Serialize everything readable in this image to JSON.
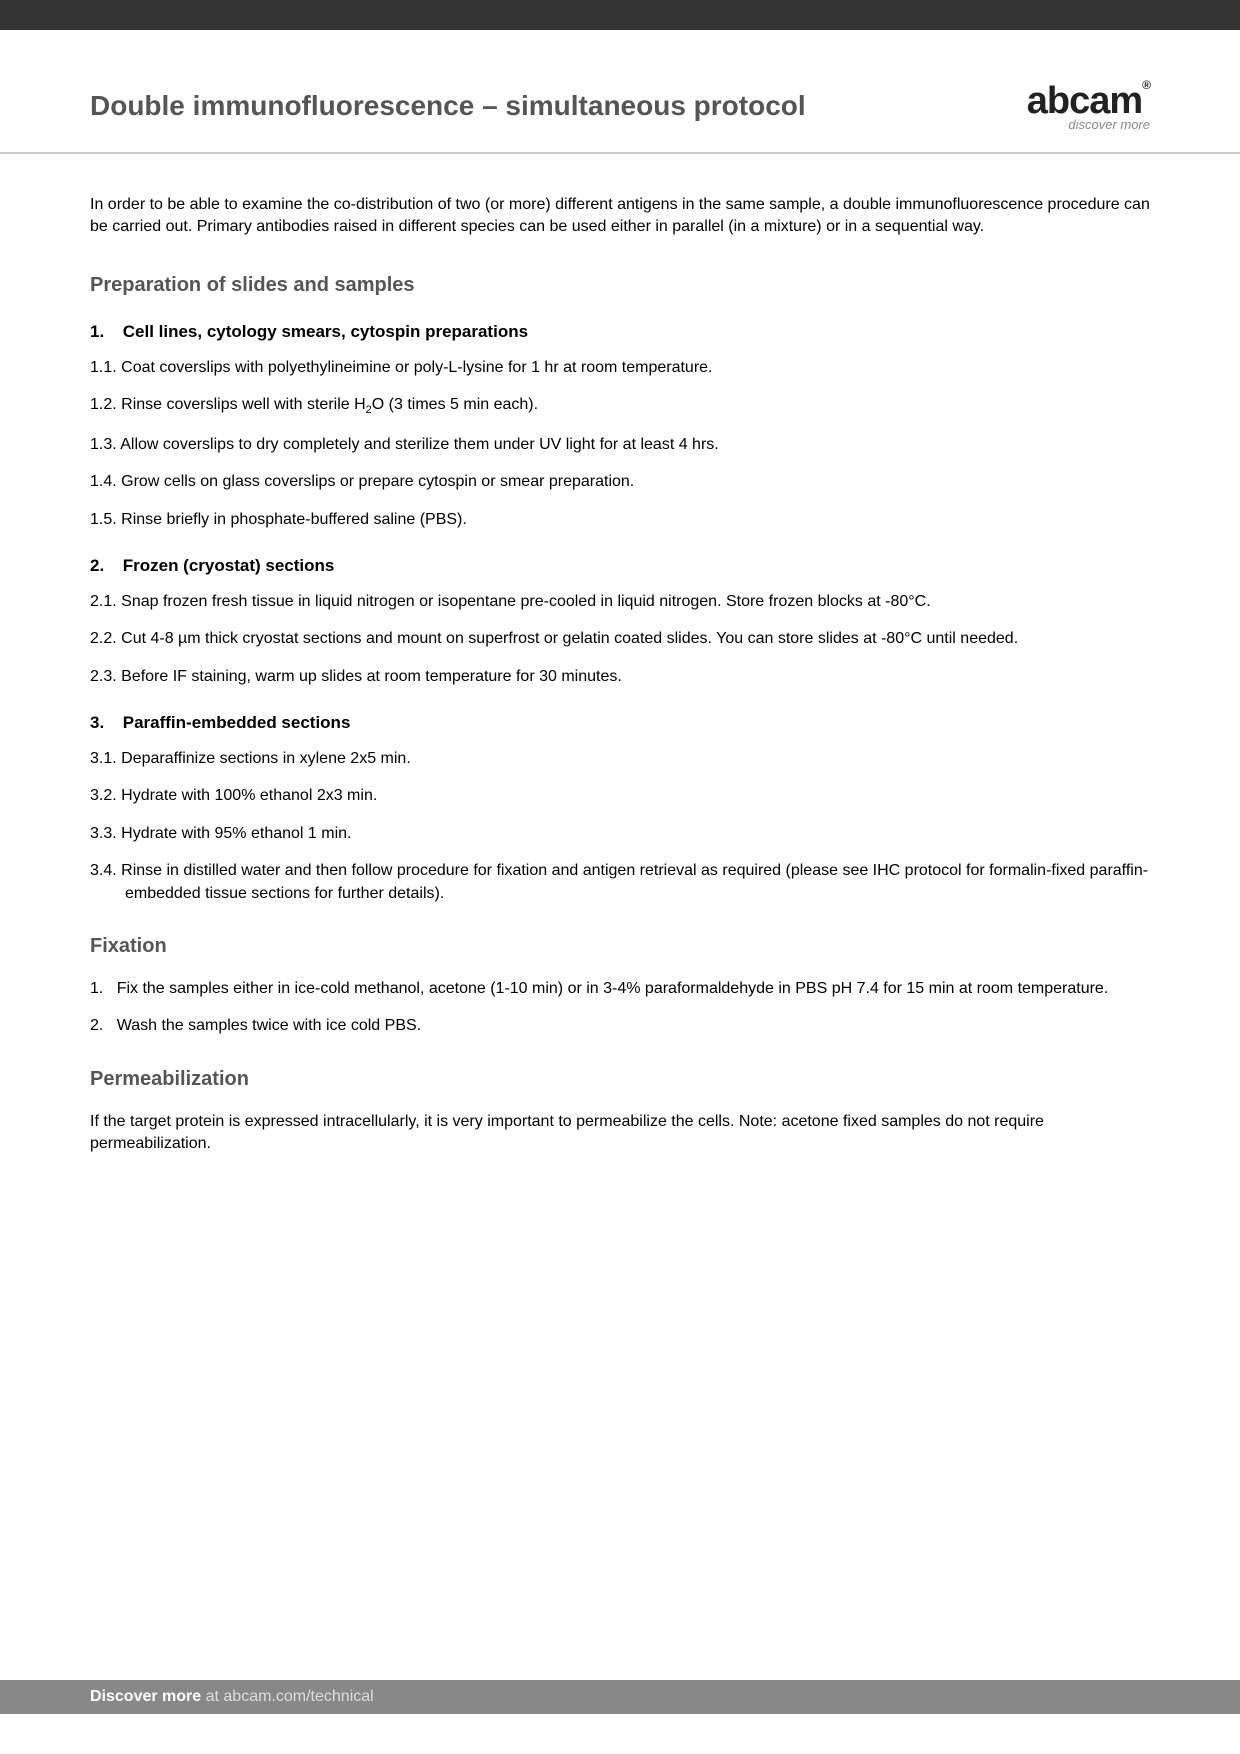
{
  "header": {
    "title": "Double immunofluorescence – simultaneous protocol",
    "logo_main": "abcam",
    "logo_reg": "®",
    "logo_tag": "discover more"
  },
  "intro": "In order to be able to examine the co-distribution of two (or more) different antigens in the same sample, a double immunofluorescence procedure can be carried out. Primary antibodies raised in different species can be used either in parallel (in a mixture) or in a sequential way.",
  "section1": {
    "heading": "Preparation of slides and samples",
    "sub1": {
      "num": "1.",
      "heading": "Cell lines, cytology smears, cytospin preparations",
      "steps": [
        {
          "num": "1.1.",
          "text": "Coat coverslips with polyethylineimine or poly-L-lysine for 1 hr at room temperature."
        },
        {
          "num": "1.2.",
          "text_pre": "Rinse coverslips well with sterile H",
          "text_sub": "2",
          "text_post": "O (3 times 5 min each)."
        },
        {
          "num": "1.3.",
          "text": "Allow coverslips to dry completely and sterilize them under UV light for at least 4 hrs."
        },
        {
          "num": "1.4.",
          "text": "Grow cells on glass coverslips or prepare cytospin or smear preparation."
        },
        {
          "num": "1.5.",
          "text": "Rinse briefly in phosphate-buffered saline (PBS)."
        }
      ]
    },
    "sub2": {
      "num": "2.",
      "heading": "Frozen (cryostat) sections",
      "steps": [
        {
          "num": "2.1.",
          "text": "Snap frozen fresh tissue in liquid nitrogen or isopentane pre-cooled in liquid nitrogen. Store frozen blocks at -80°C."
        },
        {
          "num": "2.2.",
          "text": "Cut 4-8 µm thick cryostat sections and mount on superfrost or gelatin coated slides. You can store slides at -80°C until needed."
        },
        {
          "num": "2.3.",
          "text": "Before IF staining, warm up slides at room temperature for 30 minutes."
        }
      ]
    },
    "sub3": {
      "num": "3.",
      "heading": "Paraffin-embedded sections",
      "steps": [
        {
          "num": "3.1.",
          "text": "Deparaffinize sections in xylene 2x5 min."
        },
        {
          "num": "3.2.",
          "text": "Hydrate with 100% ethanol 2x3 min."
        },
        {
          "num": "3.3.",
          "text": "Hydrate with 95% ethanol 1 min."
        },
        {
          "num": "3.4.",
          "text": "Rinse in distilled water and then follow procedure for fixation and antigen retrieval as required (please see IHC protocol for formalin-fixed paraffin-embedded tissue sections for further details)."
        }
      ]
    }
  },
  "section2": {
    "heading": "Fixation",
    "steps": [
      {
        "num": "1.",
        "text": "Fix the samples either in ice-cold methanol, acetone (1-10 min) or in 3-4% paraformaldehyde in PBS pH 7.4 for 15 min at room temperature."
      },
      {
        "num": "2.",
        "text": "Wash the samples twice with ice cold PBS."
      }
    ]
  },
  "section3": {
    "heading": "Permeabilization",
    "text": "If the target protein is expressed intracellularly, it is very important to permeabilize the cells. Note: acetone fixed samples do not require permeabilization."
  },
  "footer": {
    "bold": "Discover more",
    "rest": " at abcam.com/technical"
  }
}
